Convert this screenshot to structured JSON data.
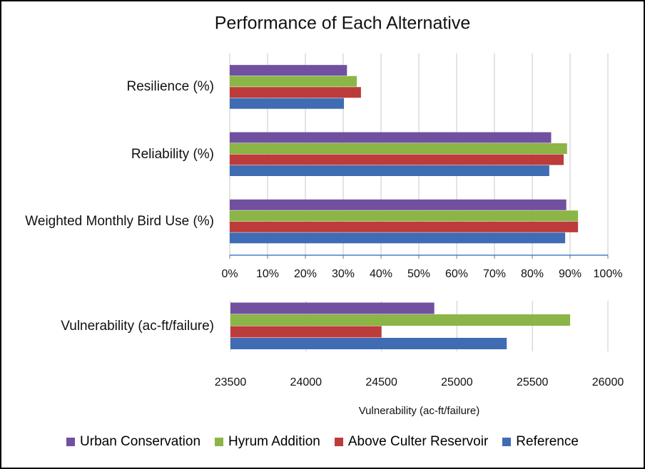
{
  "chart_data": [
    {
      "type": "barh",
      "title": "Performance of Each Alternative",
      "categories": [
        "Resilience (%)",
        "Reliability (%)",
        "Weighted Monthly Bird Use (%)"
      ],
      "series": [
        {
          "name": "Urban Conservation",
          "color": "#7150a0",
          "values": [
            31,
            85,
            89
          ]
        },
        {
          "name": "Hyrum Addition",
          "color": "#8bb546",
          "values": [
            33.6,
            89.2,
            92.1
          ]
        },
        {
          "name": "Above Culter Reservoir",
          "color": "#bc3b3b",
          "values": [
            34.7,
            88.3,
            92.1
          ]
        },
        {
          "name": "Reference",
          "color": "#3f6cb3",
          "values": [
            30.2,
            84.5,
            88.7
          ]
        }
      ],
      "xlim": [
        0,
        100
      ],
      "xticks": [
        {
          "value": 0,
          "label": "0%"
        },
        {
          "value": 10,
          "label": "10%"
        },
        {
          "value": 20,
          "label": "20%"
        },
        {
          "value": 30,
          "label": "30%"
        },
        {
          "value": 40,
          "label": "40%"
        },
        {
          "value": 50,
          "label": "50%"
        },
        {
          "value": 60,
          "label": "60%"
        },
        {
          "value": 70,
          "label": "70%"
        },
        {
          "value": 80,
          "label": "80%"
        },
        {
          "value": 90,
          "label": "90%"
        },
        {
          "value": 100,
          "label": "100%"
        }
      ],
      "grid": true
    },
    {
      "type": "barh",
      "x_label": "Vulnerability (ac-ft/failure)",
      "categories": [
        "Vulnerability (ac-ft/failure)"
      ],
      "series": [
        {
          "color": "#7150a0",
          "values": [
            24850
          ]
        },
        {
          "color": "#8bb546",
          "values": [
            25750
          ]
        },
        {
          "color": "#bc3b3b",
          "values": [
            24500
          ]
        },
        {
          "color": "#3f6cb3",
          "values": [
            25330
          ]
        }
      ],
      "xlim": [
        23500,
        26000
      ],
      "xticks": [
        23500,
        24000,
        24500,
        25000,
        25500,
        26000
      ],
      "grid": true
    }
  ]
}
